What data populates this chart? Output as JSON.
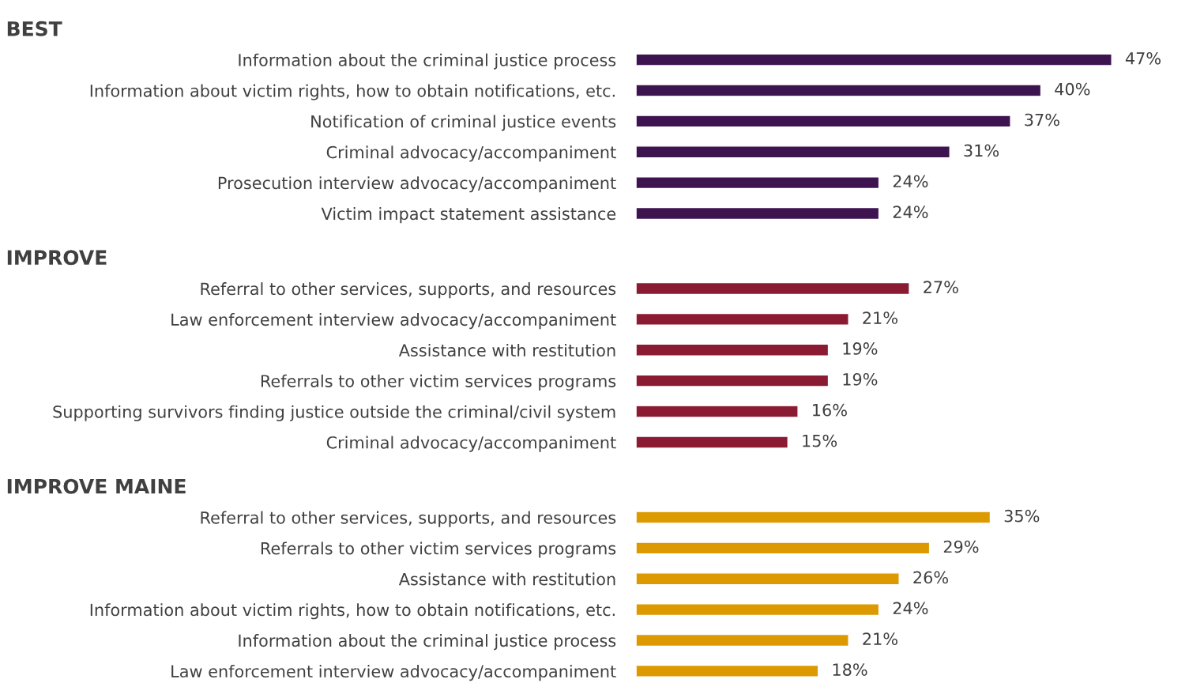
{
  "chart_data": [
    {
      "type": "bar",
      "orientation": "horizontal",
      "title": "BEST",
      "categories": [
        "Information about the criminal justice process",
        "Information about victim rights, how to obtain notifications, etc.",
        "Notification of criminal justice events",
        "Criminal advocacy/accompaniment",
        "Prosecution interview advocacy/accompaniment",
        "Victim impact statement assistance"
      ],
      "values": [
        47,
        40,
        37,
        31,
        24,
        24
      ],
      "value_labels": [
        "47%",
        "40%",
        "37%",
        "31%",
        "24%",
        "24%"
      ],
      "color": "#3d1450"
    },
    {
      "type": "bar",
      "orientation": "horizontal",
      "title": "IMPROVE",
      "categories": [
        "Referral to other services, supports, and resources",
        "Law enforcement interview advocacy/accompaniment",
        "Assistance with restitution",
        "Referrals to other victim services programs",
        "Supporting survivors finding justice outside the criminal/civil system",
        "Criminal advocacy/accompaniment"
      ],
      "values": [
        27,
        21,
        19,
        19,
        16,
        15
      ],
      "value_labels": [
        "27%",
        "21%",
        "19%",
        "19%",
        "16%",
        "15%"
      ],
      "color": "#8b1a33"
    },
    {
      "type": "bar",
      "orientation": "horizontal",
      "title": "IMPROVE MAINE",
      "categories": [
        "Referral to other services, supports, and resources",
        "Referrals to other victim services programs",
        "Assistance with restitution",
        "Information about victim rights, how to obtain notifications, etc.",
        "Information about the criminal justice process",
        "Law enforcement interview advocacy/accompaniment"
      ],
      "values": [
        35,
        29,
        26,
        24,
        21,
        18
      ],
      "value_labels": [
        "35%",
        "29%",
        "26%",
        "24%",
        "21%",
        "18%"
      ],
      "color": "#dc9a00"
    }
  ]
}
